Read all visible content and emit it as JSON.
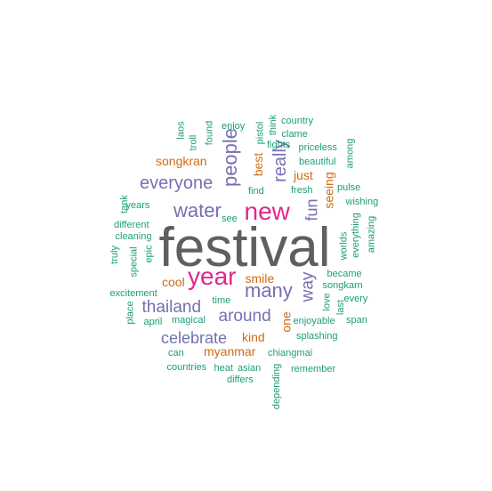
{
  "colors": {
    "dark_gray": "#5f5f5f",
    "magenta": "#e0288a",
    "purple": "#7570b3",
    "orange": "#d16a14",
    "teal": "#1b9e77"
  },
  "words": [
    {
      "text": "festival",
      "color": "dark_gray",
      "vertical": false
    },
    {
      "text": "new",
      "color": "magenta",
      "vertical": false
    },
    {
      "text": "year",
      "color": "magenta",
      "vertical": false
    },
    {
      "text": "water",
      "color": "purple",
      "vertical": false
    },
    {
      "text": "people",
      "color": "purple",
      "vertical": true
    },
    {
      "text": "many",
      "color": "purple",
      "vertical": false
    },
    {
      "text": "everyone",
      "color": "purple",
      "vertical": false
    },
    {
      "text": "thailand",
      "color": "purple",
      "vertical": false
    },
    {
      "text": "around",
      "color": "purple",
      "vertical": false
    },
    {
      "text": "celebrate",
      "color": "purple",
      "vertical": false
    },
    {
      "text": "really",
      "color": "purple",
      "vertical": true
    },
    {
      "text": "fun",
      "color": "purple",
      "vertical": true
    },
    {
      "text": "way",
      "color": "purple",
      "vertical": true
    },
    {
      "text": "songkran",
      "color": "orange",
      "vertical": false
    },
    {
      "text": "best",
      "color": "orange",
      "vertical": true
    },
    {
      "text": "just",
      "color": "orange",
      "vertical": false
    },
    {
      "text": "seeing",
      "color": "orange",
      "vertical": true
    },
    {
      "text": "cool",
      "color": "orange",
      "vertical": false
    },
    {
      "text": "smile",
      "color": "orange",
      "vertical": false
    },
    {
      "text": "one",
      "color": "orange",
      "vertical": true
    },
    {
      "text": "kind",
      "color": "orange",
      "vertical": false
    },
    {
      "text": "myanmar",
      "color": "orange",
      "vertical": false
    },
    {
      "text": "laos",
      "color": "teal",
      "vertical": true
    },
    {
      "text": "troll",
      "color": "teal",
      "vertical": true
    },
    {
      "text": "found",
      "color": "teal",
      "vertical": true
    },
    {
      "text": "enjoy",
      "color": "teal",
      "vertical": false
    },
    {
      "text": "pistol",
      "color": "teal",
      "vertical": true
    },
    {
      "text": "think",
      "color": "teal",
      "vertical": true
    },
    {
      "text": "country",
      "color": "teal",
      "vertical": false
    },
    {
      "text": "clame",
      "color": "teal",
      "vertical": false
    },
    {
      "text": "fights",
      "color": "teal",
      "vertical": false
    },
    {
      "text": "priceless",
      "color": "teal",
      "vertical": false
    },
    {
      "text": "among",
      "color": "teal",
      "vertical": true
    },
    {
      "text": "beautiful",
      "color": "teal",
      "vertical": false
    },
    {
      "text": "find",
      "color": "teal",
      "vertical": false
    },
    {
      "text": "fresh",
      "color": "teal",
      "vertical": false
    },
    {
      "text": "pulse",
      "color": "teal",
      "vertical": false
    },
    {
      "text": "wishing",
      "color": "teal",
      "vertical": false
    },
    {
      "text": "tank",
      "color": "teal",
      "vertical": true
    },
    {
      "text": "years",
      "color": "teal",
      "vertical": false
    },
    {
      "text": "see",
      "color": "teal",
      "vertical": false
    },
    {
      "text": "different",
      "color": "teal",
      "vertical": false
    },
    {
      "text": "cleaning",
      "color": "teal",
      "vertical": false
    },
    {
      "text": "amazing",
      "color": "teal",
      "vertical": true
    },
    {
      "text": "truly",
      "color": "teal",
      "vertical": true
    },
    {
      "text": "special",
      "color": "teal",
      "vertical": true
    },
    {
      "text": "epic",
      "color": "teal",
      "vertical": true
    },
    {
      "text": "worlds",
      "color": "teal",
      "vertical": true
    },
    {
      "text": "everything",
      "color": "teal",
      "vertical": true
    },
    {
      "text": "became",
      "color": "teal",
      "vertical": false
    },
    {
      "text": "songkarn",
      "color": "teal",
      "vertical": false
    },
    {
      "text": "excitement",
      "color": "teal",
      "vertical": false
    },
    {
      "text": "love",
      "color": "teal",
      "vertical": true
    },
    {
      "text": "last",
      "color": "teal",
      "vertical": true
    },
    {
      "text": "every",
      "color": "teal",
      "vertical": false
    },
    {
      "text": "place",
      "color": "teal",
      "vertical": true
    },
    {
      "text": "time",
      "color": "teal",
      "vertical": false
    },
    {
      "text": "april",
      "color": "teal",
      "vertical": false
    },
    {
      "text": "magical",
      "color": "teal",
      "vertical": false
    },
    {
      "text": "enjoyable",
      "color": "teal",
      "vertical": false
    },
    {
      "text": "span",
      "color": "teal",
      "vertical": false
    },
    {
      "text": "splashing",
      "color": "teal",
      "vertical": false
    },
    {
      "text": "can",
      "color": "teal",
      "vertical": false
    },
    {
      "text": "chiangmai",
      "color": "teal",
      "vertical": false
    },
    {
      "text": "countries",
      "color": "teal",
      "vertical": false
    },
    {
      "text": "heat",
      "color": "teal",
      "vertical": false
    },
    {
      "text": "asian",
      "color": "teal",
      "vertical": false
    },
    {
      "text": "remember",
      "color": "teal",
      "vertical": false
    },
    {
      "text": "differs",
      "color": "teal",
      "vertical": false
    },
    {
      "text": "depending",
      "color": "teal",
      "vertical": true
    }
  ]
}
